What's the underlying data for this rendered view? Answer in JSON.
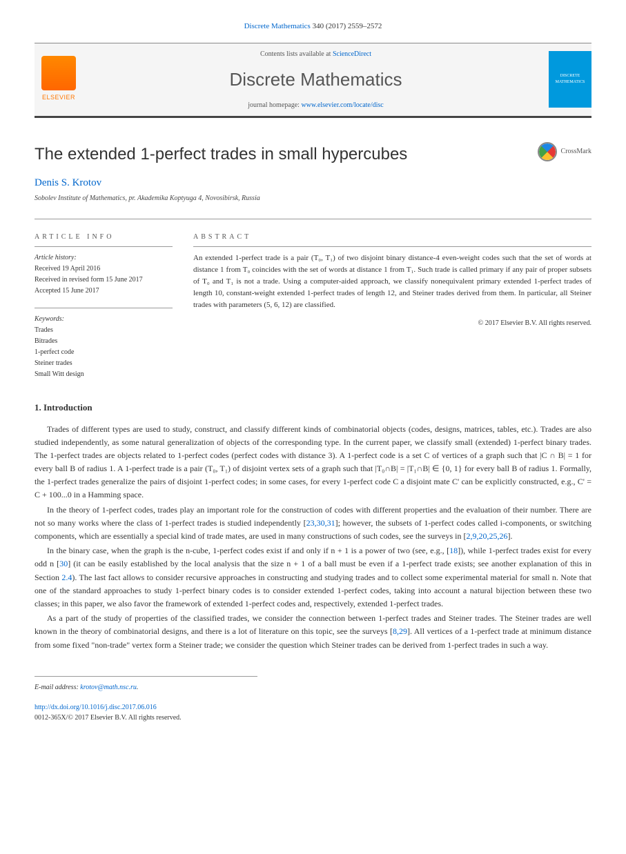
{
  "header": {
    "journal_link_text": "Discrete Mathematics",
    "citation": "340 (2017) 2559–2572",
    "contents_text": "Contents lists available at ",
    "contents_link": "ScienceDirect",
    "journal_name": "Discrete Mathematics",
    "homepage_text": "journal homepage: ",
    "homepage_link": "www.elsevier.com/locate/disc",
    "elsevier_label": "ELSEVIER",
    "cover_text": "DISCRETE MATHEMATICS"
  },
  "article": {
    "title": "The extended 1-perfect trades in small hypercubes",
    "crossmark": "CrossMark",
    "author": "Denis S. Krotov",
    "affiliation": "Sobolev Institute of Mathematics, pr. Akademika Koptyuga 4, Novosibirsk, Russia"
  },
  "info": {
    "label": "ARTICLE INFO",
    "history_label": "Article history:",
    "received": "Received 19 April 2016",
    "revised": "Received in revised form 15 June 2017",
    "accepted": "Accepted 15 June 2017",
    "keywords_label": "Keywords:",
    "keywords": [
      "Trades",
      "Bitrades",
      "1-perfect code",
      "Steiner trades",
      "Small Witt design"
    ]
  },
  "abstract": {
    "label": "ABSTRACT",
    "text": "An extended 1-perfect trade is a pair (T₀, T₁) of two disjoint binary distance-4 even-weight codes such that the set of words at distance 1 from T₀ coincides with the set of words at distance 1 from T₁. Such trade is called primary if any pair of proper subsets of T₀ and T₁ is not a trade. Using a computer-aided approach, we classify nonequivalent primary extended 1-perfect trades of length 10, constant-weight extended 1-perfect trades of length 12, and Steiner trades derived from them. In particular, all Steiner trades with parameters (5, 6, 12) are classified.",
    "copyright": "© 2017 Elsevier B.V. All rights reserved."
  },
  "section1": {
    "heading": "1. Introduction",
    "p1_a": "Trades of different types are used to study, construct, and classify different kinds of combinatorial objects (codes, designs, matrices, tables, etc.). Trades are also studied independently, as some natural generalization of objects of the corresponding type. In the current paper, we classify small (extended) 1-perfect binary trades. The 1-perfect trades are objects related to 1-perfect codes (perfect codes with distance 3). A 1-perfect code is a set C of vertices of a graph such that |C ∩ B| = 1 for every ball B of radius 1. A 1-perfect trade is a pair (T₀, T₁) of disjoint vertex sets of a graph such that |T₀∩B| = |T₁∩B| ∈ {0, 1} for every ball B of radius 1. Formally, the 1-perfect trades generalize the pairs of disjoint 1-perfect codes; in some cases, for every 1-perfect code C a disjoint mate C' can be explicitly constructed, e.g., C' = C + 100...0 in a Hamming space.",
    "p2_a": "In the theory of 1-perfect codes, trades play an important role for the construction of codes with different properties and the evaluation of their number. There are not so many works where the class of 1-perfect trades is studied independently [",
    "p2_refs1": "23,30,31",
    "p2_b": "]; however, the subsets of 1-perfect codes called i-components, or switching components, which are essentially a special kind of trade mates, are used in many constructions of such codes, see the surveys in [",
    "p2_refs2": "2,9,20,25,26",
    "p2_c": "].",
    "p3_a": "In the binary case, when the graph is the n-cube, 1-perfect codes exist if and only if n + 1 is a power of two (see, e.g., [",
    "p3_ref1": "18",
    "p3_b": "]), while 1-perfect trades exist for every odd n [",
    "p3_ref2": "30",
    "p3_c": "] (it can be easily established by the local analysis that the size n + 1 of a ball must be even if a 1-perfect trade exists; see another explanation of this in Section ",
    "p3_ref3": "2.4",
    "p3_d": "). The last fact allows to consider recursive approaches in constructing and studying trades and to collect some experimental material for small n. Note that one of the standard approaches to study 1-perfect binary codes is to consider extended 1-perfect codes, taking into account a natural bijection between these two classes; in this paper, we also favor the framework of extended 1-perfect codes and, respectively, extended 1-perfect trades.",
    "p4_a": "As a part of the study of properties of the classified trades, we consider the connection between 1-perfect trades and Steiner trades. The Steiner trades are well known in the theory of combinatorial designs, and there is a lot of literature on this topic, see the surveys [",
    "p4_refs": "8,29",
    "p4_b": "]. All vertices of a 1-perfect trade at minimum distance from some fixed \"non-trade\" vertex form a Steiner trade; we consider the question which Steiner trades can be derived from 1-perfect trades in such a way."
  },
  "footer": {
    "email_label": "E-mail address: ",
    "email": "krotov@math.nsc.ru",
    "doi_link": "http://dx.doi.org/10.1016/j.disc.2017.06.016",
    "issn_line": "0012-365X/© 2017 Elsevier B.V. All rights reserved."
  }
}
